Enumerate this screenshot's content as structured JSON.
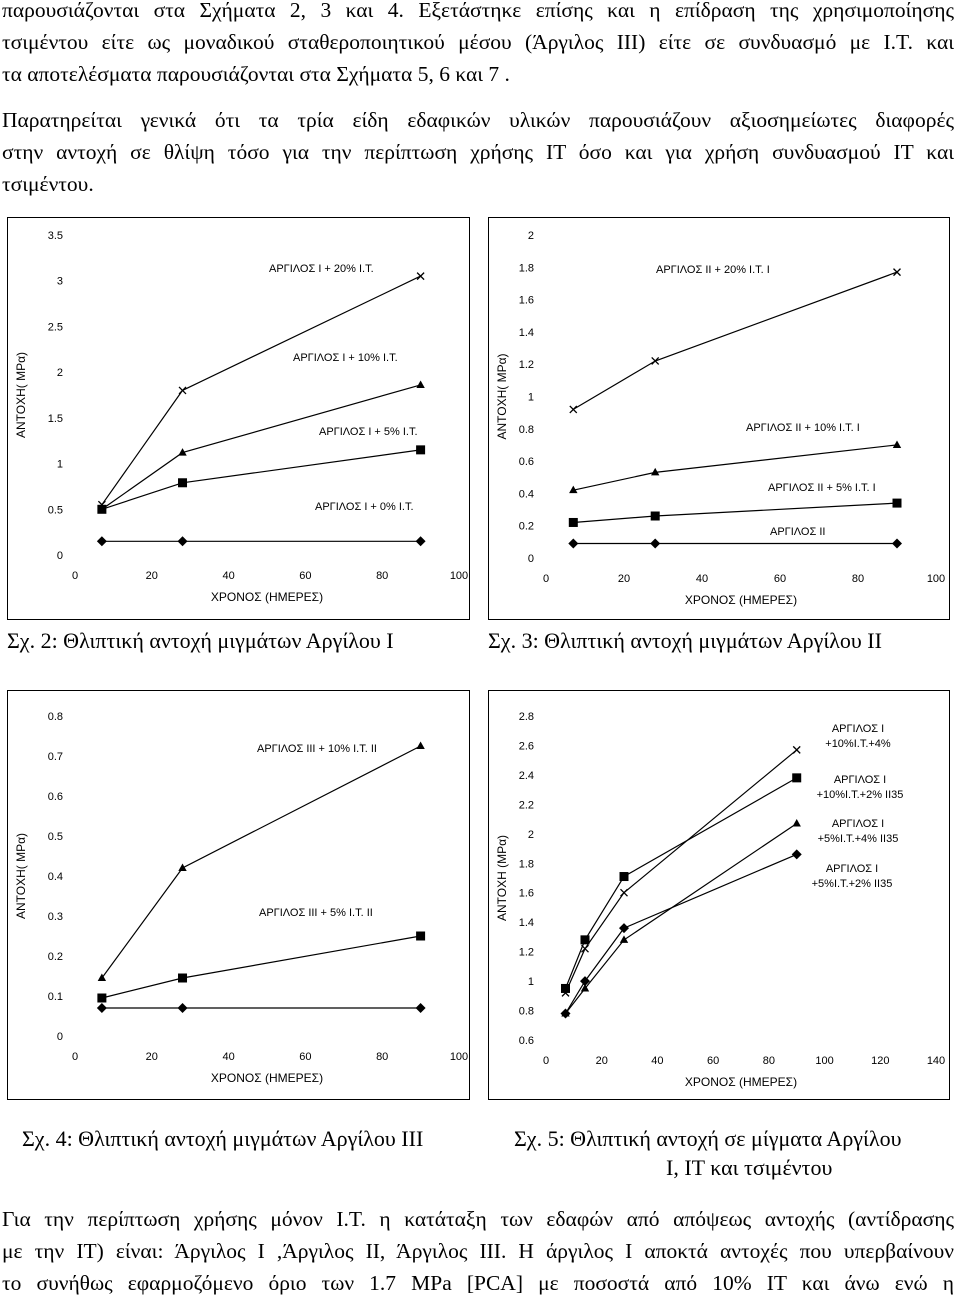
{
  "text": {
    "para1": [
      "παρουσιάζονται στα Σχήματα 2, 3 και 4. Εξετάστηκε επίσης και η επίδραση της χρησιμοποίησης",
      "τσιμέντου είτε ως μοναδικού σταθεροποιητικού μέσου (Άργιλος ΙΙΙ) είτε σε συνδυασμό με Ι.Τ. και",
      "τα αποτελέσματα παρουσιάζονται στα Σχήματα 5, 6 και 7 ."
    ],
    "para2": [
      "Παρατηρείται γενικά ότι τα τρία είδη εδαφικών υλικών παρουσιάζουν αξιοσημείωτες διαφορές",
      "στην αντοχή σε θλίψη τόσο για την περίπτωση χρήσης ΙΤ όσο και για χρήση συνδυασμού ΙΤ και",
      "τσιμέντου."
    ],
    "para3": [
      "Για την περίπτωση χρήσης μόνον Ι.Τ. η κατάταξη των εδαφών από απόψεως αντοχής (αντίδρασης",
      "με την ΙΤ) είναι: Άργιλος Ι ,Άργιλος ΙΙ, Άργιλος ΙΙΙ. Η άργιλος Ι αποκτά αντοχές που υπερβαίνουν",
      "το συνήθως εφαρμοζόμενο όριο των 1.7 MPa [PCA] με ποσοστά από 10% ΙΤ και άνω ενώ η"
    ],
    "cap2": "Σχ. 2: Θλιπτική αντοχή μιγμάτων Αργίλου Ι",
    "cap3": "Σχ. 3: Θλιπτική αντοχή μιγμάτων   Αργίλου ΙΙ",
    "cap4": "Σχ. 4:  Θλιπτική αντοχή μιγμάτων Αργίλου ΙΙΙ",
    "cap5a": "Σχ. 5: Θλιπτική αντοχή σε μίγματα Αργίλου",
    "cap5b": "Ι, ΙΤ και τσιμέντου"
  },
  "chart_data": [
    {
      "id": "fig2",
      "type": "line",
      "xlabel": "ΧΡΟΝΟΣ (ΗΜΕΡΕΣ)",
      "ylabel": "ΑΝΤΟΧΗ( MPα)",
      "xlim": [
        0,
        100
      ],
      "ylim": [
        0,
        3.5
      ],
      "xticks": [
        "0",
        "20",
        "40",
        "60",
        "80",
        "100"
      ],
      "yticks": [
        "0",
        "0.5",
        "1",
        "1.5",
        "2",
        "2.5",
        "3",
        "3.5"
      ],
      "grid": false,
      "series": [
        {
          "name": "ΑΡΓΙΛΟΣ Ι + 20% Ι.Τ.",
          "marker": "x",
          "x": [
            7,
            28,
            90
          ],
          "y": [
            0.55,
            1.8,
            3.05
          ]
        },
        {
          "name": "ΑΡΓΙΛΟΣ Ι + 10% Ι.Τ.",
          "marker": "triangle",
          "x": [
            7,
            28,
            90
          ],
          "y": [
            0.5,
            1.12,
            1.86
          ]
        },
        {
          "name": "ΑΡΓΙΛΟΣ Ι + 5% Ι.Τ.",
          "marker": "square",
          "x": [
            7,
            28,
            90
          ],
          "y": [
            0.5,
            0.79,
            1.15
          ]
        },
        {
          "name": "ΑΡΓΙΛΟΣ Ι + 0% Ι.Τ.",
          "marker": "diamond",
          "x": [
            7,
            28,
            90
          ],
          "y": [
            0.15,
            0.15,
            0.15
          ]
        }
      ]
    },
    {
      "id": "fig3",
      "type": "line",
      "xlabel": "ΧΡΟΝΟΣ (ΗΜΕΡΕΣ)",
      "ylabel": "ΑΝΤΟΧΗ( MPα)",
      "xlim": [
        0,
        100
      ],
      "ylim": [
        0,
        2
      ],
      "xticks": [
        "0",
        "20",
        "40",
        "60",
        "80",
        "100"
      ],
      "yticks": [
        "0",
        "0.2",
        "0.4",
        "0.6",
        "0.8",
        "1",
        "1.2",
        "1.4",
        "1.6",
        "1.8",
        "2"
      ],
      "grid": false,
      "series": [
        {
          "name": "ΑΡΓΙΛΟΣ ΙΙ + 20% Ι.Τ. Ι",
          "marker": "x",
          "x": [
            7,
            28,
            90
          ],
          "y": [
            0.92,
            1.22,
            1.77
          ]
        },
        {
          "name": "ΑΡΓΙΛΟΣ ΙΙ + 10% Ι.Τ. Ι",
          "marker": "triangle",
          "x": [
            7,
            28,
            90
          ],
          "y": [
            0.42,
            0.53,
            0.7
          ]
        },
        {
          "name": "ΑΡΓΙΛΟΣ ΙΙ + 5% Ι.Τ. Ι",
          "marker": "square",
          "x": [
            7,
            28,
            90
          ],
          "y": [
            0.22,
            0.26,
            0.34
          ]
        },
        {
          "name": "ΑΡΓΙΛΟΣ ΙΙ",
          "marker": "diamond",
          "x": [
            7,
            28,
            90
          ],
          "y": [
            0.09,
            0.09,
            0.09
          ]
        }
      ]
    },
    {
      "id": "fig4",
      "type": "line",
      "xlabel": "ΧΡΟΝΟΣ (ΗΜΕΡΕΣ)",
      "ylabel": "ΑΝΤΟΧΗ( MPα)",
      "xlim": [
        0,
        100
      ],
      "ylim": [
        0,
        0.8
      ],
      "xticks": [
        "0",
        "20",
        "40",
        "60",
        "80",
        "100"
      ],
      "yticks": [
        "0",
        "0.1",
        "0.2",
        "0.3",
        "0.4",
        "0.5",
        "0.6",
        "0.7",
        "0.8"
      ],
      "grid": false,
      "series": [
        {
          "name": "ΑΡΓΙΛΟΣ ΙΙΙ + 10% Ι.Τ. ΙΙ",
          "marker": "triangle",
          "x": [
            7,
            28,
            90
          ],
          "y": [
            0.145,
            0.42,
            0.725
          ]
        },
        {
          "name": "ΑΡΓΙΛΟΣ ΙΙΙ + 5% Ι.Τ. ΙΙ",
          "marker": "square",
          "x": [
            7,
            28,
            90
          ],
          "y": [
            0.095,
            0.145,
            0.25
          ]
        },
        {
          "name": "",
          "marker": "diamond",
          "x": [
            7,
            28,
            90
          ],
          "y": [
            0.07,
            0.07,
            0.07
          ]
        }
      ]
    },
    {
      "id": "fig5",
      "type": "line",
      "xlabel": "ΧΡΟΝΟΣ (ΗΜΕΡΕΣ)",
      "ylabel": "ΑΝΤΟΧΗ (MPα)",
      "xlim": [
        0,
        140
      ],
      "ylim": [
        0.6,
        2.8
      ],
      "xticks": [
        "0",
        "20",
        "40",
        "60",
        "80",
        "100",
        "120",
        "140"
      ],
      "yticks": [
        "0.6",
        "0.8",
        "1",
        "1.2",
        "1.4",
        "1.6",
        "1.8",
        "2",
        "2.2",
        "2.4",
        "2.6",
        "2.8"
      ],
      "grid": false,
      "series": [
        {
          "name": "ΑΡΓΙΛΟΣ Ι +10%Ι.Τ.+4%",
          "marker": "x",
          "x": [
            7,
            14,
            28,
            90
          ],
          "y": [
            0.92,
            1.22,
            1.6,
            2.57
          ]
        },
        {
          "name": "ΑΡΓΙΛΟΣ Ι +10%Ι.Τ.+2% ΙΙ35",
          "marker": "square",
          "x": [
            7,
            14,
            28,
            90
          ],
          "y": [
            0.95,
            1.28,
            1.71,
            2.38
          ]
        },
        {
          "name": "ΑΡΓΙΛΟΣ Ι +5%Ι.Τ.+4% ΙΙ35",
          "marker": "triangle",
          "x": [
            7,
            14,
            28,
            90
          ],
          "y": [
            0.78,
            0.95,
            1.28,
            2.07
          ]
        },
        {
          "name": "ΑΡΓΙΛΟΣ Ι +5%Ι.Τ.+2% ΙΙ35",
          "marker": "diamond",
          "x": [
            7,
            14,
            28,
            90
          ],
          "y": [
            0.78,
            1.0,
            1.36,
            1.86
          ]
        }
      ]
    }
  ]
}
